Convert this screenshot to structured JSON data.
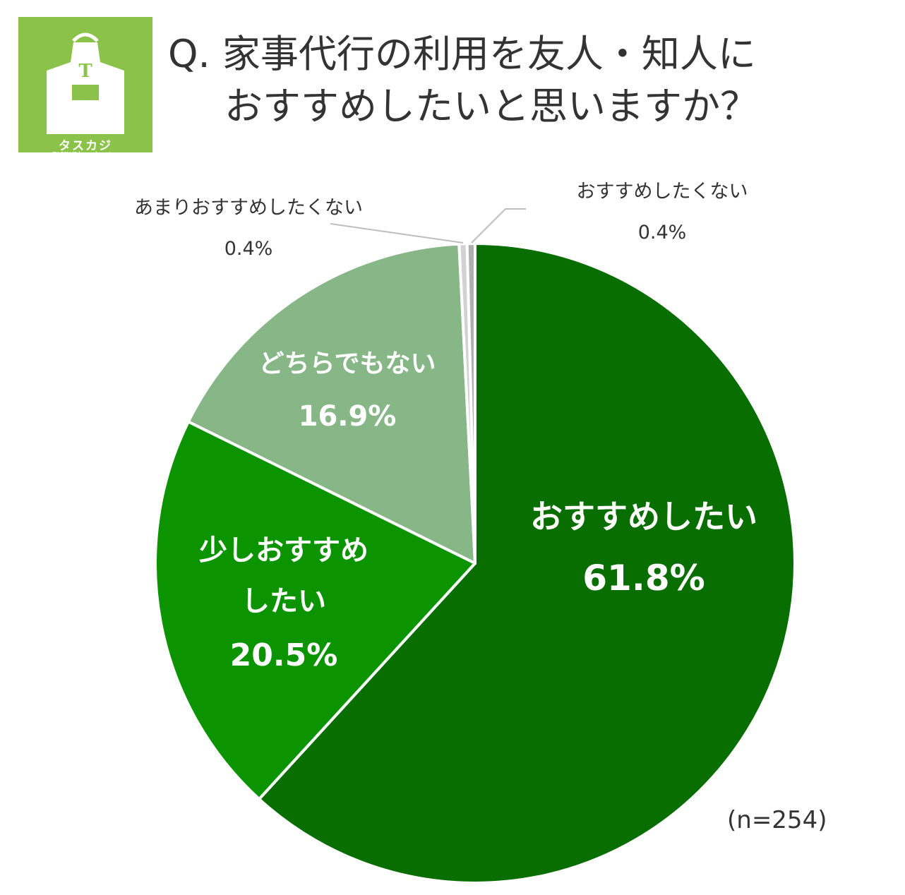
{
  "logo": {
    "name": "タスカジ",
    "subtitle": "TASKAJI housekeeping",
    "apron_letter": "T",
    "bg_color": "#8bc34a"
  },
  "title": {
    "line1": "Q. 家事代行の利用を友人・知人に",
    "line2": "おすすめしたいと思いますか？"
  },
  "sample_size": "(n=254)",
  "chart_data": {
    "type": "pie",
    "title": "Q. 家事代行の利用を友人・知人におすすめしたいと思いますか？",
    "start": "12 o'clock, clockwise",
    "slices": [
      {
        "label": "おすすめしたい",
        "value": 61.8,
        "display": "61.8%",
        "color": "#086e00"
      },
      {
        "label": "少しおすすめしたい",
        "value": 20.5,
        "display": "20.5%",
        "color": "#0b9400"
      },
      {
        "label": "どちらでもない",
        "value": 16.9,
        "display": "16.9%",
        "color": "#87b787"
      },
      {
        "label": "あまりおすすめしたくない",
        "value": 0.4,
        "display": "0.4%",
        "color": "#d2d2d2"
      },
      {
        "label": "おすすめしたくない",
        "value": 0.4,
        "display": "0.4%",
        "color": "#b0b0b0"
      }
    ]
  }
}
